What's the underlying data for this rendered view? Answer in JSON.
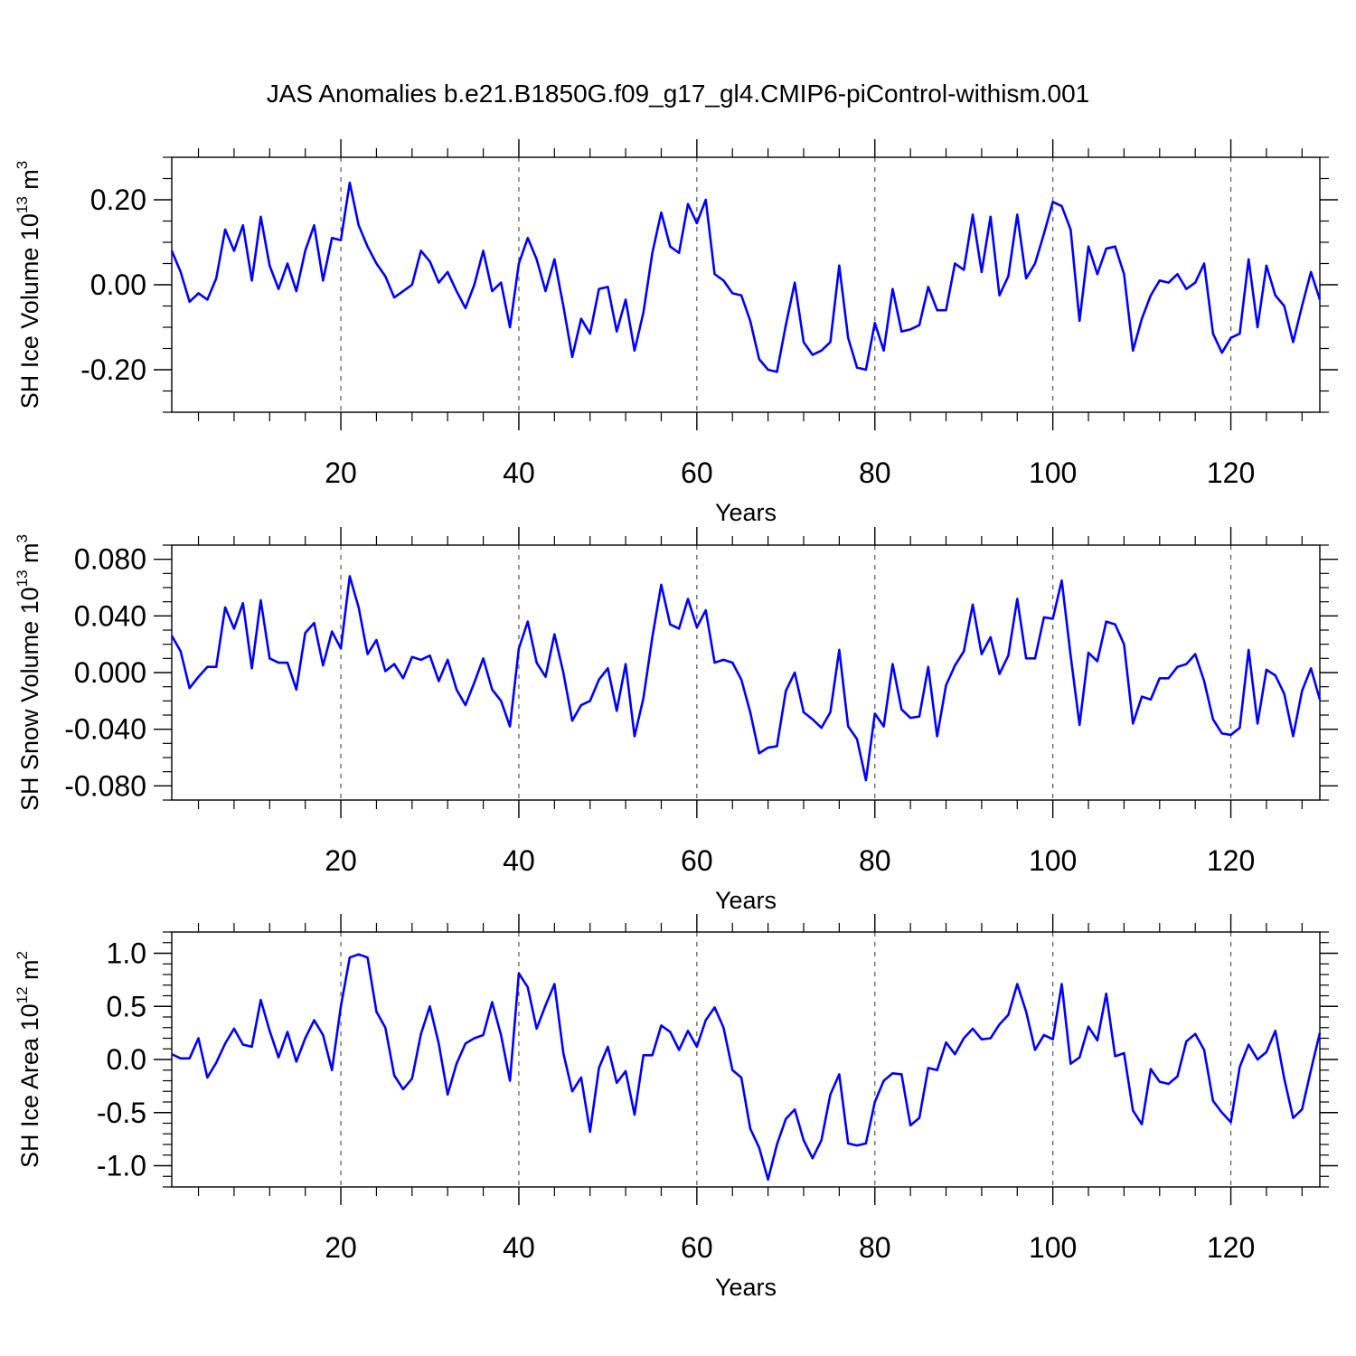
{
  "title": "JAS Anomalies b.e21.B1850G.f09_g17_gl4.CMIP6-piControl-withism.001",
  "style": {
    "line_color": "#0000ff",
    "frame_color": "#000000",
    "grid_color": "#555555"
  },
  "chart_data": [
    {
      "type": "line",
      "name": "ice-volume",
      "ylabel": {
        "text": "SH Ice Volume 10",
        "sup": "13",
        "unit": " m",
        "unit_sup": "3"
      },
      "xlabel": "Years",
      "xlim": [
        1,
        130
      ],
      "ylim": [
        -0.3,
        0.3
      ],
      "yticks": [
        -0.2,
        0.0,
        0.2
      ],
      "ytick_labels": [
        "-0.20",
        "0.00",
        "0.20"
      ],
      "yminor_step": 0.05,
      "xticks": [
        20,
        40,
        60,
        80,
        100,
        120
      ],
      "xtick_labels": [
        "20",
        "40",
        "60",
        "80",
        "100",
        "120"
      ],
      "xminor_step": 4,
      "grid_x": [
        20,
        40,
        60,
        80,
        100,
        120
      ],
      "x_start": 1,
      "values": [
        0.08,
        0.03,
        -0.04,
        -0.02,
        -0.035,
        0.015,
        0.13,
        0.08,
        0.14,
        0.01,
        0.16,
        0.045,
        -0.01,
        0.05,
        -0.015,
        0.08,
        0.14,
        0.01,
        0.11,
        0.105,
        0.24,
        0.14,
        0.09,
        0.05,
        0.02,
        -0.03,
        -0.015,
        0.0,
        0.08,
        0.055,
        0.005,
        0.03,
        -0.015,
        -0.055,
        0.0,
        0.08,
        -0.015,
        0.005,
        -0.1,
        0.05,
        0.11,
        0.06,
        -0.015,
        0.06,
        -0.05,
        -0.17,
        -0.08,
        -0.115,
        -0.01,
        -0.005,
        -0.11,
        -0.035,
        -0.155,
        -0.065,
        0.075,
        0.17,
        0.09,
        0.075,
        0.19,
        0.145,
        0.2,
        0.025,
        0.01,
        -0.02,
        -0.025,
        -0.085,
        -0.175,
        -0.2,
        -0.205,
        -0.095,
        0.005,
        -0.135,
        -0.165,
        -0.155,
        -0.135,
        0.045,
        -0.125,
        -0.195,
        -0.2,
        -0.09,
        -0.155,
        -0.01,
        -0.11,
        -0.105,
        -0.095,
        -0.005,
        -0.06,
        -0.06,
        0.05,
        0.035,
        0.165,
        0.03,
        0.16,
        -0.025,
        0.02,
        0.165,
        0.015,
        0.05,
        0.12,
        0.195,
        0.185,
        0.13,
        -0.085,
        0.09,
        0.025,
        0.085,
        0.09,
        0.025,
        -0.155,
        -0.08,
        -0.025,
        0.01,
        0.005,
        0.025,
        -0.01,
        0.005,
        0.05,
        -0.115,
        -0.16,
        -0.125,
        -0.115,
        0.06,
        -0.1,
        0.045,
        -0.025,
        -0.05,
        -0.135,
        -0.05,
        0.03,
        -0.035
      ]
    },
    {
      "type": "line",
      "name": "snow-volume",
      "ylabel": {
        "text": "SH Snow Volume 10",
        "sup": "13",
        "unit": " m",
        "unit_sup": "3"
      },
      "xlabel": "Years",
      "xlim": [
        1,
        130
      ],
      "ylim": [
        -0.09,
        0.09
      ],
      "yticks": [
        -0.08,
        -0.04,
        0.0,
        0.04,
        0.08
      ],
      "ytick_labels": [
        "-0.080",
        "-0.040",
        "0.000",
        "0.040",
        "0.080"
      ],
      "yminor_step": 0.01,
      "xticks": [
        20,
        40,
        60,
        80,
        100,
        120
      ],
      "xtick_labels": [
        "20",
        "40",
        "60",
        "80",
        "100",
        "120"
      ],
      "xminor_step": 4,
      "grid_x": [
        20,
        40,
        60,
        80,
        100,
        120
      ],
      "x_start": 1,
      "values": [
        0.026,
        0.015,
        -0.011,
        -0.003,
        0.004,
        0.004,
        0.046,
        0.031,
        0.049,
        0.003,
        0.051,
        0.01,
        0.007,
        0.007,
        -0.012,
        0.028,
        0.035,
        0.005,
        0.029,
        0.017,
        0.068,
        0.046,
        0.013,
        0.023,
        0.001,
        0.006,
        -0.004,
        0.011,
        0.009,
        0.012,
        -0.006,
        0.009,
        -0.012,
        -0.023,
        -0.007,
        0.01,
        -0.012,
        -0.02,
        -0.038,
        0.017,
        0.036,
        0.007,
        -0.003,
        0.027,
        0.0,
        -0.034,
        -0.023,
        -0.02,
        -0.005,
        0.003,
        -0.027,
        0.006,
        -0.045,
        -0.018,
        0.025,
        0.062,
        0.034,
        0.031,
        0.052,
        0.032,
        0.044,
        0.007,
        0.009,
        0.007,
        -0.005,
        -0.028,
        -0.057,
        -0.053,
        -0.052,
        -0.013,
        0.0,
        -0.028,
        -0.033,
        -0.039,
        -0.028,
        0.016,
        -0.038,
        -0.047,
        -0.076,
        -0.029,
        -0.038,
        0.006,
        -0.026,
        -0.032,
        -0.031,
        0.004,
        -0.045,
        -0.009,
        0.005,
        0.015,
        0.048,
        0.013,
        0.025,
        -0.001,
        0.012,
        0.052,
        0.01,
        0.01,
        0.039,
        0.038,
        0.065,
        0.012,
        -0.037,
        0.014,
        0.008,
        0.036,
        0.034,
        0.02,
        -0.036,
        -0.017,
        -0.019,
        -0.004,
        -0.004,
        0.004,
        0.006,
        0.013,
        -0.006,
        -0.033,
        -0.043,
        -0.044,
        -0.039,
        0.016,
        -0.036,
        0.002,
        -0.002,
        -0.015,
        -0.045,
        -0.013,
        0.003,
        -0.019
      ]
    },
    {
      "type": "line",
      "name": "ice-area",
      "ylabel": {
        "text": "SH Ice Area 10",
        "sup": "12",
        "unit": " m",
        "unit_sup": "2"
      },
      "xlabel": "Years",
      "xlim": [
        1,
        130
      ],
      "ylim": [
        -1.2,
        1.2
      ],
      "yticks": [
        -1.0,
        -0.5,
        0.0,
        0.5,
        1.0
      ],
      "ytick_labels": [
        "-1.0",
        "-0.5",
        "0.0",
        "0.5",
        "1.0"
      ],
      "yminor_step": 0.1,
      "xticks": [
        20,
        40,
        60,
        80,
        100,
        120
      ],
      "xtick_labels": [
        "20",
        "40",
        "60",
        "80",
        "100",
        "120"
      ],
      "xminor_step": 4,
      "grid_x": [
        20,
        40,
        60,
        80,
        100,
        120
      ],
      "x_start": 1,
      "values": [
        0.05,
        0.01,
        0.01,
        0.2,
        -0.17,
        -0.03,
        0.15,
        0.29,
        0.14,
        0.12,
        0.56,
        0.27,
        0.02,
        0.26,
        -0.02,
        0.2,
        0.37,
        0.23,
        -0.1,
        0.5,
        0.96,
        0.99,
        0.96,
        0.45,
        0.3,
        -0.15,
        -0.28,
        -0.18,
        0.24,
        0.5,
        0.15,
        -0.33,
        -0.04,
        0.15,
        0.2,
        0.23,
        0.54,
        0.23,
        -0.2,
        0.81,
        0.68,
        0.29,
        0.51,
        0.71,
        0.06,
        -0.3,
        -0.17,
        -0.68,
        -0.08,
        0.12,
        -0.22,
        -0.11,
        -0.52,
        0.04,
        0.04,
        0.32,
        0.26,
        0.09,
        0.27,
        0.12,
        0.37,
        0.49,
        0.3,
        -0.1,
        -0.17,
        -0.65,
        -0.83,
        -1.13,
        -0.8,
        -0.56,
        -0.47,
        -0.76,
        -0.93,
        -0.76,
        -0.33,
        -0.14,
        -0.79,
        -0.81,
        -0.79,
        -0.4,
        -0.2,
        -0.13,
        -0.14,
        -0.62,
        -0.55,
        -0.08,
        -0.1,
        0.16,
        0.05,
        0.2,
        0.29,
        0.19,
        0.2,
        0.33,
        0.42,
        0.71,
        0.45,
        0.09,
        0.23,
        0.19,
        0.71,
        -0.04,
        0.02,
        0.31,
        0.18,
        0.62,
        0.03,
        0.06,
        -0.48,
        -0.61,
        -0.09,
        -0.21,
        -0.23,
        -0.16,
        0.17,
        0.24,
        0.09,
        -0.39,
        -0.5,
        -0.59,
        -0.07,
        0.14,
        0.0,
        0.07,
        0.27,
        -0.18,
        -0.55,
        -0.47,
        -0.1,
        0.25
      ]
    }
  ]
}
